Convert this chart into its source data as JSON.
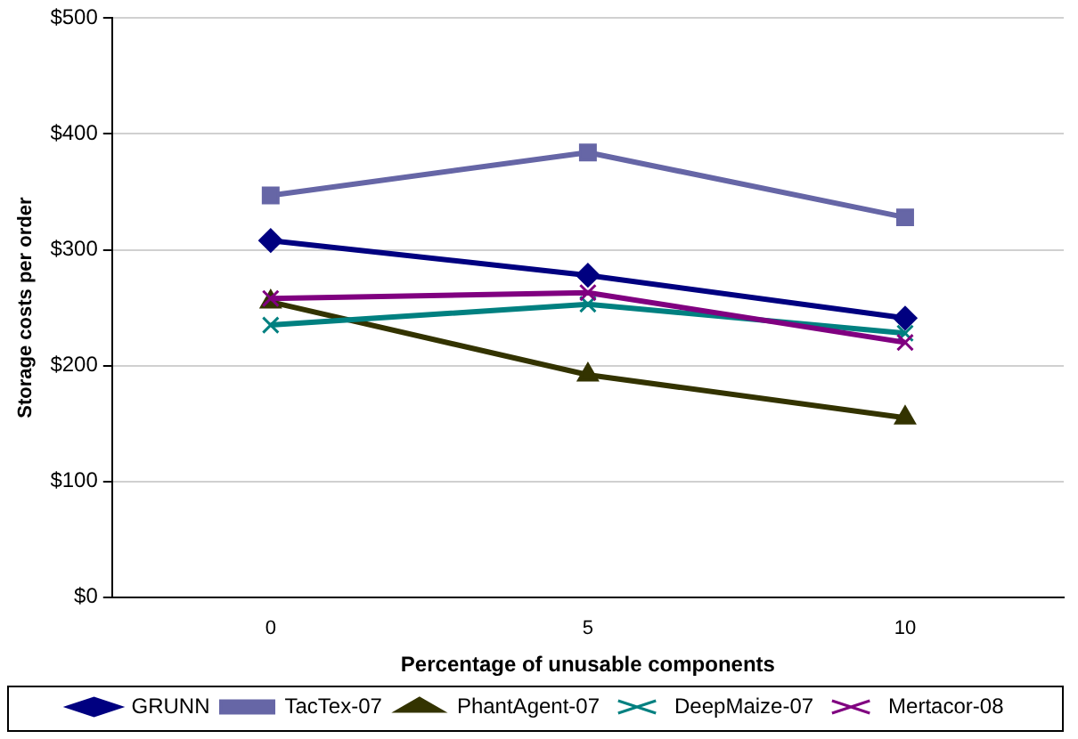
{
  "chart_data": {
    "type": "line",
    "xlabel": "Percentage of unusable components",
    "ylabel": "Storage costs per order",
    "categories": [
      "0",
      "5",
      "10"
    ],
    "series": [
      {
        "name": "GRUNN",
        "color": "#000080",
        "marker": "diamond",
        "values": [
          308,
          278,
          241
        ]
      },
      {
        "name": "TacTex-07",
        "color": "#6666a6",
        "marker": "square",
        "values": [
          347,
          384,
          328
        ]
      },
      {
        "name": "PhantAgent-07",
        "color": "#333300",
        "marker": "triangle",
        "values": [
          255,
          192,
          155
        ]
      },
      {
        "name": "DeepMaize-07",
        "color": "#008080",
        "marker": "cross",
        "values": [
          235,
          253,
          228
        ]
      },
      {
        "name": "Mertacor-08",
        "color": "#800080",
        "marker": "cross",
        "values": [
          258,
          263,
          220
        ]
      }
    ],
    "ylim": [
      0,
      500
    ],
    "yticks": [
      {
        "value": 0,
        "label": "$0"
      },
      {
        "value": 100,
        "label": "$100"
      },
      {
        "value": 200,
        "label": "$200"
      },
      {
        "value": 300,
        "label": "$300"
      },
      {
        "value": 400,
        "label": "$400"
      },
      {
        "value": 500,
        "label": "$500"
      }
    ],
    "grid": "y",
    "legend": "bottom",
    "line_style": "solid"
  }
}
